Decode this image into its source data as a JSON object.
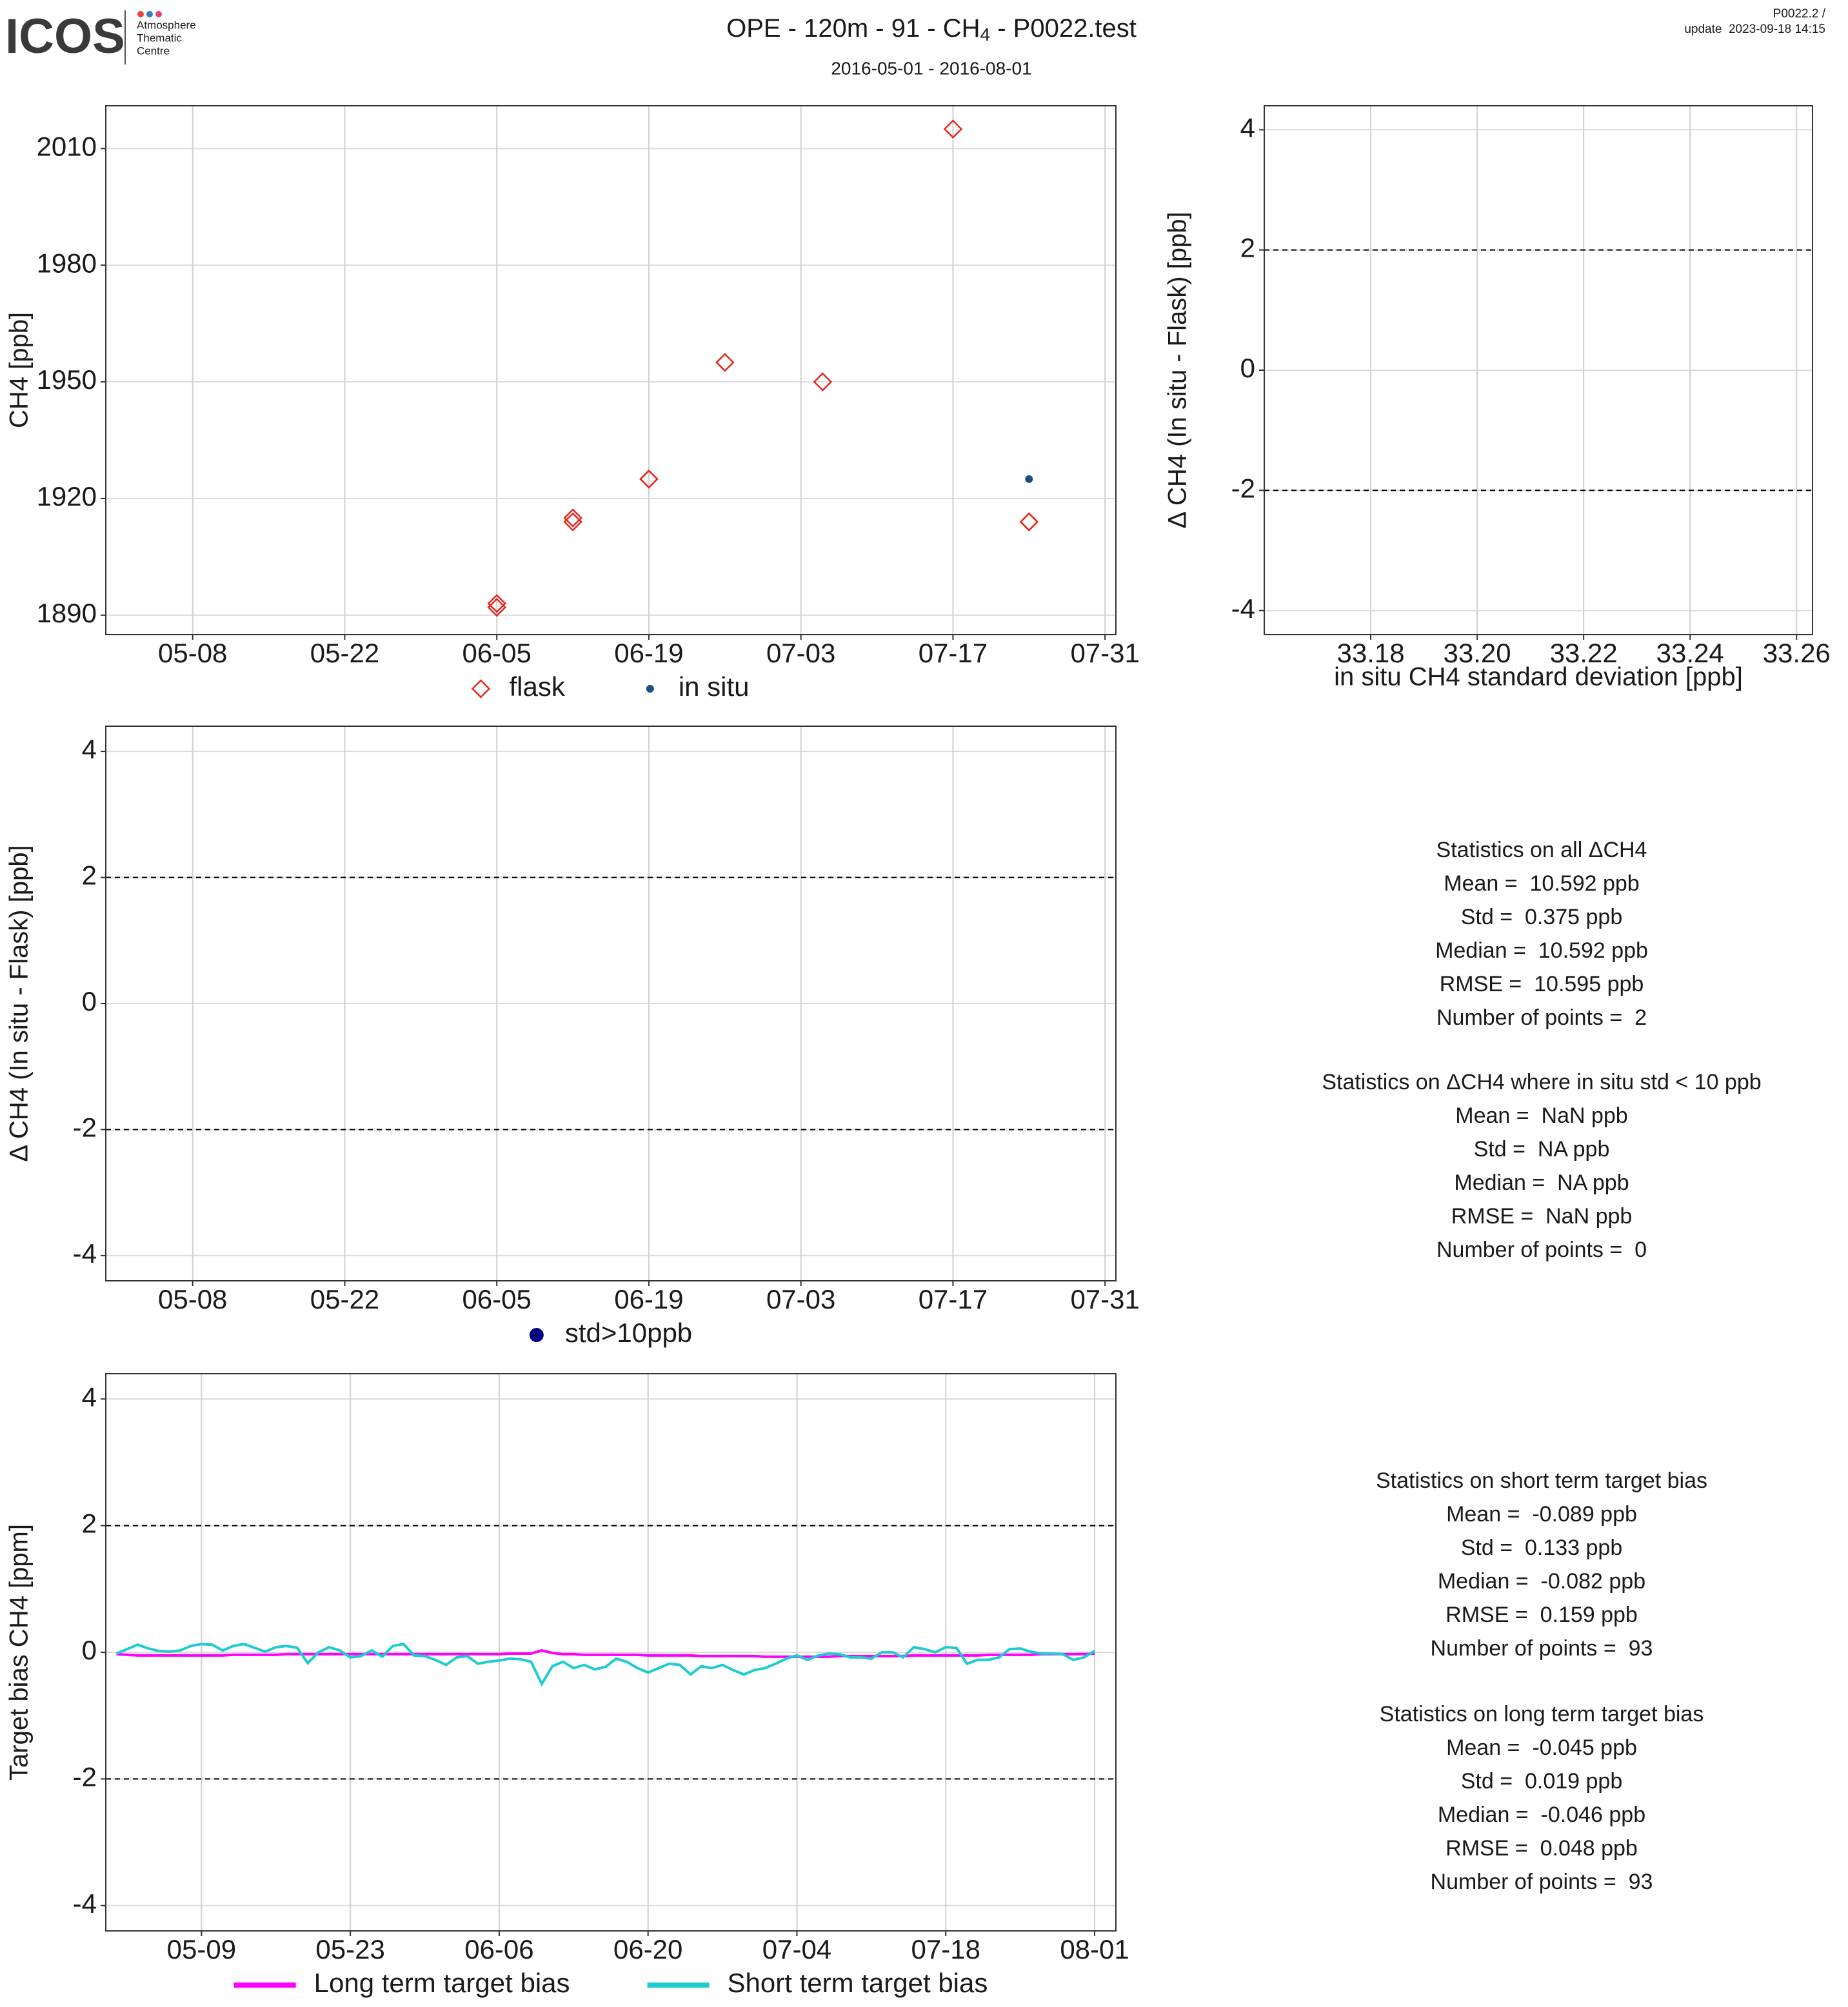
{
  "header": {
    "logo": "ICOS",
    "logo_lines": [
      "Atmosphere",
      "Thematic",
      "Centre"
    ],
    "title": "OPE - 120m - 91 - CH",
    "title_subscript": "4",
    "title_end": " - P0022.test",
    "subtitle": "2016-05-01 - 2016-08-01",
    "version": "P0022.2 /",
    "update": "update  2023-09-18 14:15"
  },
  "chart_data": [
    {
      "type": "scatter",
      "xdate": true,
      "xlim": [
        "04-30",
        "08-01"
      ],
      "ylim": [
        1885,
        2021
      ],
      "xticks": [
        "05-08",
        "05-22",
        "06-05",
        "06-19",
        "07-03",
        "07-17",
        "07-31"
      ],
      "yticks": [
        1890,
        1920,
        1950,
        1980,
        2010
      ],
      "grid": true,
      "ylabel": "CH4 [ppb]",
      "series": [
        {
          "name": "flask",
          "color": "#e8261e",
          "marker": "diamond",
          "x": [
            "06-05",
            "06-05",
            "06-12",
            "06-12",
            "06-19",
            "06-19",
            "06-26",
            "07-05",
            "07-17",
            "07-24",
            "07-24"
          ],
          "values": [
            1893,
            1892,
            1915,
            1914,
            1925,
            1925,
            1955,
            1950,
            2015,
            1914,
            1914
          ]
        },
        {
          "name": "in situ",
          "color": "#1b4f80",
          "marker": "dot",
          "x": [
            "07-24"
          ],
          "values": [
            1925
          ]
        }
      ]
    },
    {
      "type": "scatter",
      "xlim": [
        33.16,
        33.263
      ],
      "ylim": [
        -4.4,
        4.4
      ],
      "xticks": [
        33.18,
        {
          "value": 33.2,
          "label": "33.20"
        },
        33.22,
        33.24,
        33.26
      ],
      "yticks": [
        -4,
        -2,
        0,
        2,
        4
      ],
      "hlines": [
        -2,
        2
      ],
      "grid": true,
      "ylabel": "Δ CH4 (In situ - Flask) [ppb]",
      "xlabel": "in situ CH4 standard deviation [ppb]"
    },
    {
      "type": "scatter",
      "xdate": true,
      "xlim": [
        "04-30",
        "08-01"
      ],
      "ylim": [
        -4.4,
        4.4
      ],
      "xticks": [
        "05-08",
        "05-22",
        "06-05",
        "06-19",
        "07-03",
        "07-17",
        "07-31"
      ],
      "yticks": [
        -4,
        -2,
        0,
        2,
        4
      ],
      "hlines": [
        -2,
        2
      ],
      "grid": true,
      "ylabel": "Δ CH4 (In situ - Flask) [ppb]",
      "series": [
        {
          "name": "std>10ppb",
          "color": "#00007f",
          "marker": "bigdot",
          "x": [],
          "values": []
        }
      ]
    },
    {
      "type": "line",
      "xdate": true,
      "xlim": [
        "04-30",
        "08-03"
      ],
      "ylim": [
        -4.4,
        4.4
      ],
      "xticks": [
        "05-09",
        "05-23",
        "06-06",
        "06-20",
        "07-04",
        "07-18",
        "08-01"
      ],
      "yticks": [
        -4,
        -2,
        0,
        2,
        4
      ],
      "hlines": [
        -2,
        2
      ],
      "grid": true,
      "ylabel": "Target bias CH4 [ppm]",
      "x": [
        "05-01",
        "05-02",
        "05-03",
        "05-04",
        "05-05",
        "05-06",
        "05-07",
        "05-08",
        "05-09",
        "05-10",
        "05-11",
        "05-12",
        "05-13",
        "05-14",
        "05-15",
        "05-16",
        "05-17",
        "05-18",
        "05-19",
        "05-20",
        "05-21",
        "05-22",
        "05-23",
        "05-24",
        "05-25",
        "05-26",
        "05-27",
        "05-28",
        "05-29",
        "05-30",
        "05-31",
        "06-01",
        "06-02",
        "06-03",
        "06-04",
        "06-05",
        "06-06",
        "06-07",
        "06-08",
        "06-09",
        "06-10",
        "06-11",
        "06-12",
        "06-13",
        "06-14",
        "06-15",
        "06-16",
        "06-17",
        "06-18",
        "06-19",
        "06-20",
        "06-21",
        "06-22",
        "06-23",
        "06-24",
        "06-25",
        "06-26",
        "06-27",
        "06-28",
        "06-29",
        "06-30",
        "07-01",
        "07-02",
        "07-03",
        "07-04",
        "07-05",
        "07-06",
        "07-07",
        "07-08",
        "07-09",
        "07-10",
        "07-11",
        "07-12",
        "07-13",
        "07-14",
        "07-15",
        "07-16",
        "07-17",
        "07-18",
        "07-19",
        "07-20",
        "07-21",
        "07-22",
        "07-23",
        "07-24",
        "07-25",
        "07-26",
        "07-27",
        "07-28",
        "07-29",
        "07-30",
        "07-31",
        "08-01"
      ],
      "series": [
        {
          "name": "Long term target bias",
          "color": "#ff00ff",
          "values": [
            -0.03,
            -0.04,
            -0.05,
            -0.05,
            -0.05,
            -0.05,
            -0.05,
            -0.05,
            -0.05,
            -0.05,
            -0.05,
            -0.04,
            -0.04,
            -0.04,
            -0.04,
            -0.04,
            -0.03,
            -0.03,
            -0.03,
            -0.03,
            -0.03,
            -0.03,
            -0.03,
            -0.03,
            -0.03,
            -0.03,
            -0.03,
            -0.03,
            -0.03,
            -0.03,
            -0.03,
            -0.03,
            -0.03,
            -0.03,
            -0.03,
            -0.03,
            -0.03,
            -0.02,
            -0.02,
            -0.02,
            0.03,
            -0.01,
            -0.03,
            -0.03,
            -0.04,
            -0.04,
            -0.04,
            -0.04,
            -0.04,
            -0.04,
            -0.05,
            -0.05,
            -0.05,
            -0.05,
            -0.05,
            -0.06,
            -0.06,
            -0.06,
            -0.06,
            -0.06,
            -0.06,
            -0.07,
            -0.07,
            -0.07,
            -0.07,
            -0.07,
            -0.07,
            -0.07,
            -0.06,
            -0.06,
            -0.06,
            -0.06,
            -0.06,
            -0.06,
            -0.06,
            -0.05,
            -0.05,
            -0.05,
            -0.05,
            -0.05,
            -0.05,
            -0.05,
            -0.04,
            -0.04,
            -0.04,
            -0.04,
            -0.04,
            -0.03,
            -0.03,
            -0.03,
            -0.03,
            -0.03,
            -0.02
          ]
        },
        {
          "name": "Short term target bias",
          "color": "#1ecbd1",
          "values": [
            -0.02,
            0.05,
            0.12,
            0.06,
            0.02,
            0.01,
            0.03,
            0.1,
            0.13,
            0.12,
            0.03,
            0.1,
            0.13,
            0.07,
            0.01,
            0.08,
            0.1,
            0.07,
            -0.17,
            0.0,
            0.08,
            0.03,
            -0.08,
            -0.06,
            0.03,
            -0.07,
            0.1,
            0.13,
            -0.05,
            -0.06,
            -0.12,
            -0.2,
            -0.08,
            -0.06,
            -0.18,
            -0.15,
            -0.13,
            -0.1,
            -0.11,
            -0.15,
            -0.5,
            -0.22,
            -0.15,
            -0.25,
            -0.2,
            -0.27,
            -0.23,
            -0.1,
            -0.15,
            -0.25,
            -0.32,
            -0.25,
            -0.18,
            -0.2,
            -0.35,
            -0.22,
            -0.25,
            -0.2,
            -0.28,
            -0.35,
            -0.28,
            -0.25,
            -0.18,
            -0.1,
            -0.05,
            -0.12,
            -0.05,
            -0.02,
            -0.03,
            -0.08,
            -0.08,
            -0.1,
            0.0,
            0.0,
            -0.08,
            0.08,
            0.05,
            0.0,
            0.08,
            0.07,
            -0.18,
            -0.12,
            -0.12,
            -0.08,
            0.05,
            0.06,
            0.01,
            -0.02,
            -0.02,
            -0.03,
            -0.12,
            -0.08,
            0.02
          ]
        }
      ]
    }
  ],
  "stats": [
    [
      "Statistics on all ΔCH4",
      "Mean =  10.592 ppb",
      "Std =  0.375 ppb",
      "Median =  10.592 ppb",
      "RMSE =  10.595 ppb",
      "Number of points =  2"
    ],
    [
      "Statistics on ΔCH4 where in situ std < 10 ppb",
      "Mean =  NaN ppb",
      "Std =  NA ppb",
      "Median =  NA ppb",
      "RMSE =  NaN ppb",
      "Number of points =  0"
    ],
    [
      "Statistics on short term target bias",
      "Mean =  -0.089 ppb",
      "Std =  0.133 ppb",
      "Median =  -0.082 ppb",
      "RMSE =  0.159 ppb",
      "Number of points =  93"
    ],
    [
      "Statistics on long term target bias",
      "Mean =  -0.045 ppb",
      "Std =  0.019 ppb",
      "Median =  -0.046 ppb",
      "RMSE =  0.048 ppb",
      "Number of points =  93"
    ]
  ]
}
